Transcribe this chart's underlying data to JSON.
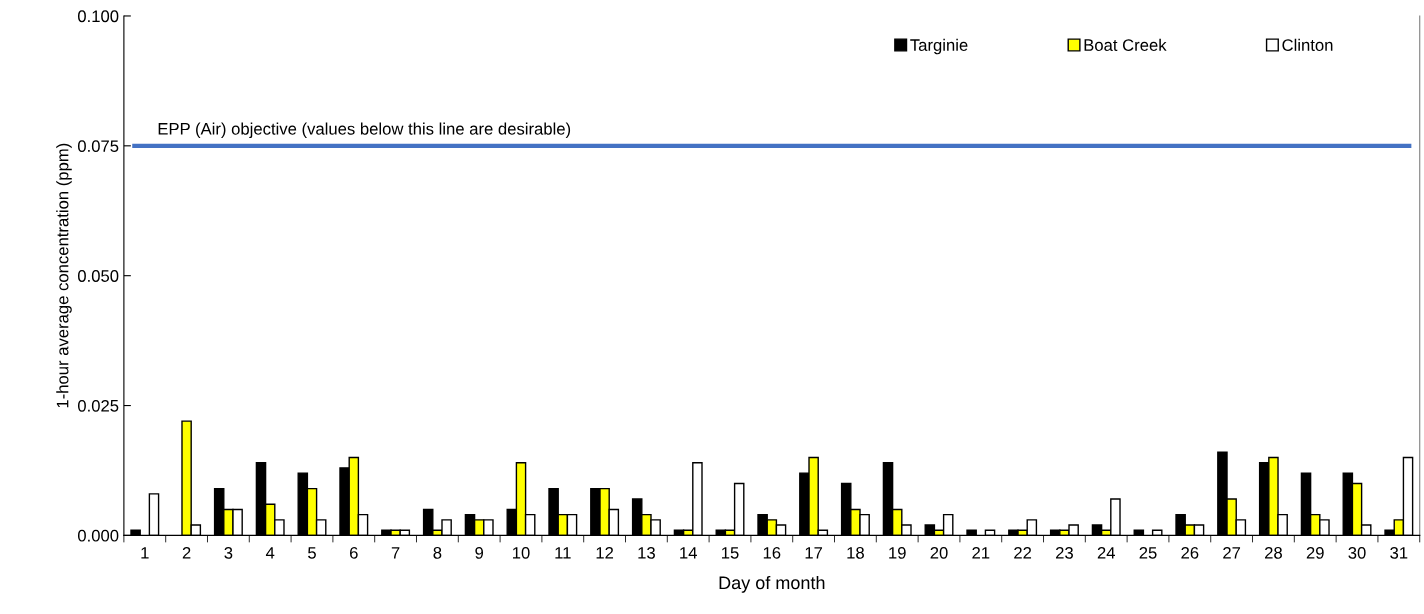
{
  "chart_data": {
    "type": "bar",
    "xlabel": "Day of month",
    "ylabel": "1-hour average concentration (ppm)",
    "categories": [
      "1",
      "2",
      "3",
      "4",
      "5",
      "6",
      "7",
      "8",
      "9",
      "10",
      "11",
      "12",
      "13",
      "14",
      "15",
      "16",
      "17",
      "18",
      "19",
      "20",
      "21",
      "22",
      "23",
      "24",
      "25",
      "26",
      "27",
      "28",
      "29",
      "30",
      "31"
    ],
    "series": [
      {
        "name": "Targinie",
        "color": "#000000",
        "values": [
          0.001,
          null,
          0.009,
          0.014,
          0.012,
          0.013,
          0.001,
          0.005,
          0.004,
          0.005,
          0.009,
          0.009,
          0.007,
          0.001,
          0.001,
          0.004,
          0.012,
          0.01,
          0.014,
          0.002,
          0.001,
          0.001,
          0.001,
          0.002,
          0.001,
          0.004,
          0.016,
          0.014,
          0.012,
          0.012,
          0.001
        ]
      },
      {
        "name": "Boat Creek",
        "color": "#ffff00",
        "values": [
          null,
          0.022,
          0.005,
          0.006,
          0.009,
          0.015,
          0.001,
          0.001,
          0.003,
          0.014,
          0.004,
          0.009,
          0.004,
          0.001,
          0.001,
          0.003,
          0.015,
          0.005,
          0.005,
          0.001,
          null,
          0.001,
          0.001,
          0.001,
          null,
          0.002,
          0.007,
          0.015,
          0.004,
          0.01,
          0.003
        ]
      },
      {
        "name": "Clinton",
        "color": "#ffffff",
        "values": [
          0.008,
          0.002,
          0.005,
          0.003,
          0.003,
          0.004,
          0.001,
          0.003,
          0.003,
          0.004,
          0.004,
          0.005,
          0.003,
          0.014,
          0.01,
          0.002,
          0.001,
          0.004,
          0.002,
          0.004,
          0.001,
          0.003,
          0.002,
          0.007,
          0.001,
          0.002,
          0.003,
          0.004,
          0.003,
          0.002,
          0.015
        ]
      }
    ],
    "ylim": [
      0,
      0.1
    ],
    "yticks": [
      {
        "value": 0,
        "label": "0.000"
      },
      {
        "value": 0.025,
        "label": "0.025"
      },
      {
        "value": 0.05,
        "label": "0.050"
      },
      {
        "value": 0.075,
        "label": "0.075"
      },
      {
        "value": 0.1,
        "label": "0.100"
      }
    ],
    "ref_lines": [
      {
        "axis": "y",
        "value": 0.075,
        "label": "EPP (Air) objective (values below this line are desirable)",
        "color": "#4472c4",
        "line_style": "solid"
      }
    ],
    "grid": false,
    "legend": "top right"
  }
}
